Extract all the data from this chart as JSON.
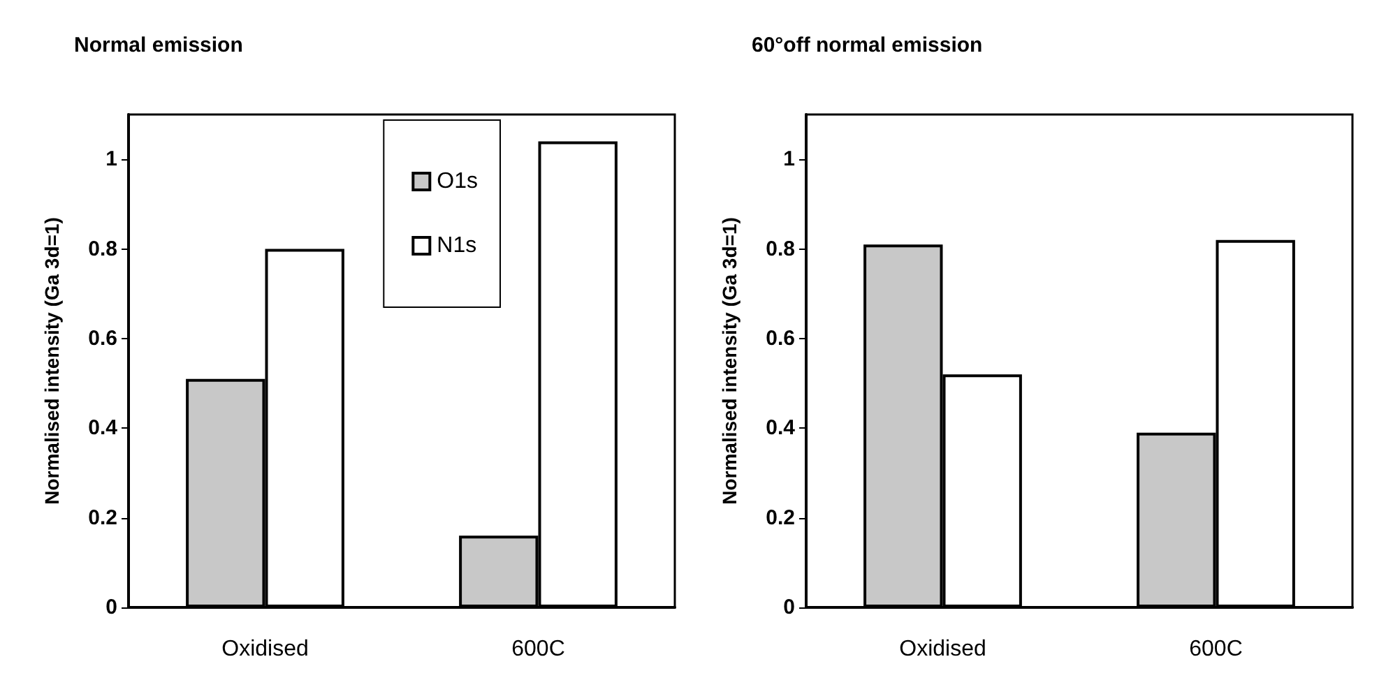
{
  "chart_data": [
    {
      "type": "bar",
      "title": "Normal emission",
      "ylabel": "Normalised intensity (Ga 3d=1)",
      "categories": [
        "Oxidised",
        "600C"
      ],
      "series": [
        {
          "name": "O1s",
          "color": "#c8c8c8",
          "values": [
            0.51,
            0.16
          ]
        },
        {
          "name": "N1s",
          "color": "#ffffff",
          "values": [
            0.8,
            1.04
          ]
        }
      ],
      "ylim": [
        0,
        1.1
      ],
      "yticks": [
        0,
        0.2,
        0.4,
        0.6,
        0.8,
        1
      ],
      "grid": false,
      "legend": "top right"
    },
    {
      "type": "bar",
      "title": "60°off normal emission",
      "ylabel": "Normalised intensity (Ga 3d=1)",
      "categories": [
        "Oxidised",
        "600C"
      ],
      "series": [
        {
          "color": "#c8c8c8",
          "values": [
            0.81,
            0.39
          ]
        },
        {
          "color": "#ffffff",
          "values": [
            0.52,
            0.82
          ]
        }
      ],
      "ylim": [
        0,
        1.1
      ],
      "yticks": [
        0,
        0.2,
        0.4,
        0.6,
        0.8,
        1
      ],
      "grid": false,
      "legend": false
    }
  ]
}
